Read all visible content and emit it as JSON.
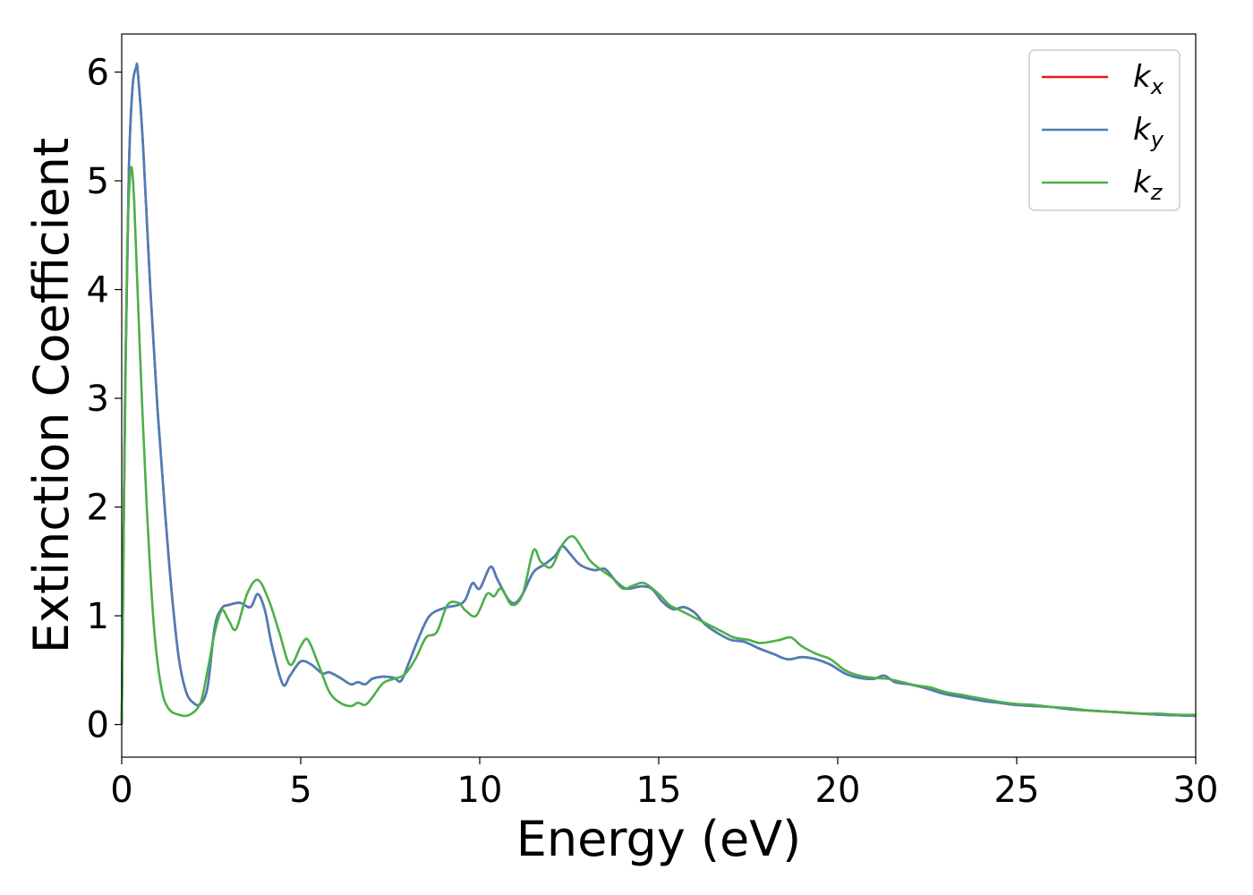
{
  "chart_data": {
    "type": "line",
    "title": "",
    "xlabel": "Energy (eV)",
    "ylabel": "Extinction Coefficient",
    "xlim": [
      0,
      30
    ],
    "ylim": [
      -0.3,
      6.35
    ],
    "xticks": [
      0,
      5,
      10,
      15,
      20,
      25,
      30
    ],
    "yticks": [
      0,
      1,
      2,
      3,
      4,
      5,
      6
    ],
    "grid": false,
    "legend_position": "top-right",
    "series": [
      {
        "name": "k_x",
        "legend_base": "k",
        "legend_sub": "x",
        "color": "#e41a1c",
        "x": [
          0,
          0.1,
          0.2,
          0.3,
          0.4,
          0.45,
          0.6,
          0.8,
          1.0,
          1.2,
          1.4,
          1.6,
          1.8,
          2.0,
          2.2,
          2.4,
          2.6,
          2.8,
          3.0,
          3.3,
          3.6,
          3.8,
          4.0,
          4.2,
          4.5,
          4.7,
          5.0,
          5.3,
          5.6,
          5.8,
          6.1,
          6.4,
          6.6,
          6.8,
          7.0,
          7.3,
          7.6,
          7.8,
          8.0,
          8.3,
          8.6,
          9.0,
          9.4,
          9.6,
          9.8,
          10.0,
          10.3,
          10.5,
          10.8,
          11.0,
          11.2,
          11.5,
          11.8,
          12.1,
          12.3,
          12.5,
          12.8,
          13.2,
          13.5,
          13.8,
          14.1,
          14.5,
          14.8,
          15.1,
          15.4,
          15.7,
          16.0,
          16.3,
          16.6,
          17.0,
          17.4,
          17.8,
          18.2,
          18.6,
          19.0,
          19.4,
          19.8,
          20.2,
          20.6,
          21.0,
          21.3,
          21.6,
          22.0,
          22.5,
          23.0,
          23.5,
          24.0,
          24.5,
          25.0,
          25.5,
          26.0,
          26.5,
          27.0,
          27.5,
          28.0,
          28.5,
          29.0,
          29.5,
          30.0
        ],
        "y": [
          0,
          3.2,
          5.1,
          5.85,
          6.04,
          6.0,
          5.3,
          4.0,
          2.9,
          2.0,
          1.2,
          0.6,
          0.3,
          0.2,
          0.19,
          0.35,
          0.9,
          1.07,
          1.1,
          1.12,
          1.08,
          1.2,
          1.05,
          0.72,
          0.37,
          0.45,
          0.58,
          0.55,
          0.47,
          0.48,
          0.43,
          0.37,
          0.39,
          0.37,
          0.42,
          0.44,
          0.43,
          0.4,
          0.55,
          0.8,
          1.0,
          1.07,
          1.1,
          1.15,
          1.3,
          1.25,
          1.45,
          1.33,
          1.15,
          1.12,
          1.2,
          1.4,
          1.47,
          1.55,
          1.64,
          1.58,
          1.47,
          1.42,
          1.43,
          1.32,
          1.25,
          1.27,
          1.25,
          1.13,
          1.06,
          1.08,
          1.03,
          0.92,
          0.85,
          0.78,
          0.76,
          0.7,
          0.65,
          0.6,
          0.62,
          0.6,
          0.55,
          0.47,
          0.43,
          0.42,
          0.45,
          0.39,
          0.37,
          0.33,
          0.28,
          0.25,
          0.22,
          0.2,
          0.18,
          0.17,
          0.16,
          0.14,
          0.13,
          0.12,
          0.11,
          0.1,
          0.09,
          0.085,
          0.08
        ]
      },
      {
        "name": "k_y",
        "legend_base": "k",
        "legend_sub": "y",
        "color": "#4a7fb8",
        "x": [
          0,
          0.1,
          0.2,
          0.3,
          0.4,
          0.45,
          0.6,
          0.8,
          1.0,
          1.2,
          1.4,
          1.6,
          1.8,
          2.0,
          2.2,
          2.4,
          2.6,
          2.8,
          3.0,
          3.3,
          3.6,
          3.8,
          4.0,
          4.2,
          4.5,
          4.7,
          5.0,
          5.3,
          5.6,
          5.8,
          6.1,
          6.4,
          6.6,
          6.8,
          7.0,
          7.3,
          7.6,
          7.8,
          8.0,
          8.3,
          8.6,
          9.0,
          9.4,
          9.6,
          9.8,
          10.0,
          10.3,
          10.5,
          10.8,
          11.0,
          11.2,
          11.5,
          11.8,
          12.1,
          12.3,
          12.5,
          12.8,
          13.2,
          13.5,
          13.8,
          14.1,
          14.5,
          14.8,
          15.1,
          15.4,
          15.7,
          16.0,
          16.3,
          16.6,
          17.0,
          17.4,
          17.8,
          18.2,
          18.6,
          19.0,
          19.4,
          19.8,
          20.2,
          20.6,
          21.0,
          21.3,
          21.6,
          22.0,
          22.5,
          23.0,
          23.5,
          24.0,
          24.5,
          25.0,
          25.5,
          26.0,
          26.5,
          27.0,
          27.5,
          28.0,
          28.5,
          29.0,
          29.5,
          30.0
        ],
        "y": [
          0,
          3.2,
          5.1,
          5.85,
          6.04,
          6.0,
          5.3,
          4.0,
          2.9,
          2.0,
          1.2,
          0.6,
          0.3,
          0.2,
          0.19,
          0.35,
          0.9,
          1.07,
          1.1,
          1.12,
          1.08,
          1.2,
          1.05,
          0.72,
          0.37,
          0.45,
          0.58,
          0.55,
          0.47,
          0.48,
          0.43,
          0.37,
          0.39,
          0.37,
          0.42,
          0.44,
          0.43,
          0.4,
          0.55,
          0.8,
          1.0,
          1.07,
          1.1,
          1.15,
          1.3,
          1.25,
          1.45,
          1.33,
          1.15,
          1.12,
          1.2,
          1.4,
          1.47,
          1.55,
          1.64,
          1.58,
          1.47,
          1.42,
          1.43,
          1.32,
          1.25,
          1.27,
          1.25,
          1.13,
          1.06,
          1.08,
          1.03,
          0.92,
          0.85,
          0.78,
          0.76,
          0.7,
          0.65,
          0.6,
          0.62,
          0.6,
          0.55,
          0.47,
          0.43,
          0.42,
          0.45,
          0.39,
          0.37,
          0.33,
          0.28,
          0.25,
          0.22,
          0.2,
          0.18,
          0.17,
          0.16,
          0.14,
          0.13,
          0.12,
          0.11,
          0.1,
          0.09,
          0.085,
          0.08
        ]
      },
      {
        "name": "k_z",
        "legend_base": "k",
        "legend_sub": "z",
        "color": "#4daf4a",
        "x": [
          0,
          0.08,
          0.15,
          0.25,
          0.35,
          0.5,
          0.7,
          0.9,
          1.1,
          1.3,
          1.6,
          1.9,
          2.2,
          2.4,
          2.6,
          2.8,
          3.0,
          3.2,
          3.5,
          3.8,
          4.1,
          4.4,
          4.7,
          5.0,
          5.2,
          5.5,
          5.8,
          6.1,
          6.4,
          6.6,
          6.8,
          7.0,
          7.3,
          7.6,
          7.9,
          8.2,
          8.5,
          8.8,
          9.1,
          9.4,
          9.6,
          9.9,
          10.2,
          10.4,
          10.6,
          10.9,
          11.2,
          11.5,
          11.7,
          12.0,
          12.3,
          12.6,
          12.9,
          13.1,
          13.4,
          13.7,
          14.0,
          14.3,
          14.6,
          15.0,
          15.3,
          15.6,
          15.9,
          16.2,
          16.5,
          16.8,
          17.1,
          17.5,
          17.8,
          18.1,
          18.4,
          18.7,
          19.0,
          19.4,
          19.8,
          20.2,
          20.6,
          21.0,
          21.4,
          21.8,
          22.2,
          22.6,
          23.0,
          23.5,
          24.0,
          24.5,
          25.0,
          25.5,
          26.0,
          26.5,
          27.0,
          27.5,
          28.0,
          28.5,
          29.0,
          29.5,
          30.0
        ],
        "y": [
          0,
          2.5,
          4.3,
          5.1,
          4.8,
          3.5,
          2.0,
          0.9,
          0.35,
          0.15,
          0.09,
          0.09,
          0.2,
          0.5,
          0.85,
          1.05,
          0.95,
          0.88,
          1.2,
          1.33,
          1.15,
          0.85,
          0.55,
          0.72,
          0.78,
          0.55,
          0.3,
          0.2,
          0.17,
          0.2,
          0.18,
          0.25,
          0.38,
          0.42,
          0.46,
          0.6,
          0.8,
          0.85,
          1.1,
          1.12,
          1.05,
          1.0,
          1.2,
          1.18,
          1.25,
          1.1,
          1.2,
          1.6,
          1.5,
          1.45,
          1.65,
          1.73,
          1.6,
          1.5,
          1.42,
          1.35,
          1.25,
          1.28,
          1.3,
          1.2,
          1.1,
          1.05,
          1.0,
          0.95,
          0.9,
          0.85,
          0.8,
          0.78,
          0.75,
          0.76,
          0.78,
          0.8,
          0.72,
          0.65,
          0.6,
          0.5,
          0.45,
          0.43,
          0.42,
          0.39,
          0.36,
          0.34,
          0.3,
          0.27,
          0.24,
          0.21,
          0.19,
          0.18,
          0.16,
          0.15,
          0.13,
          0.12,
          0.11,
          0.1,
          0.1,
          0.09,
          0.09
        ]
      }
    ]
  }
}
